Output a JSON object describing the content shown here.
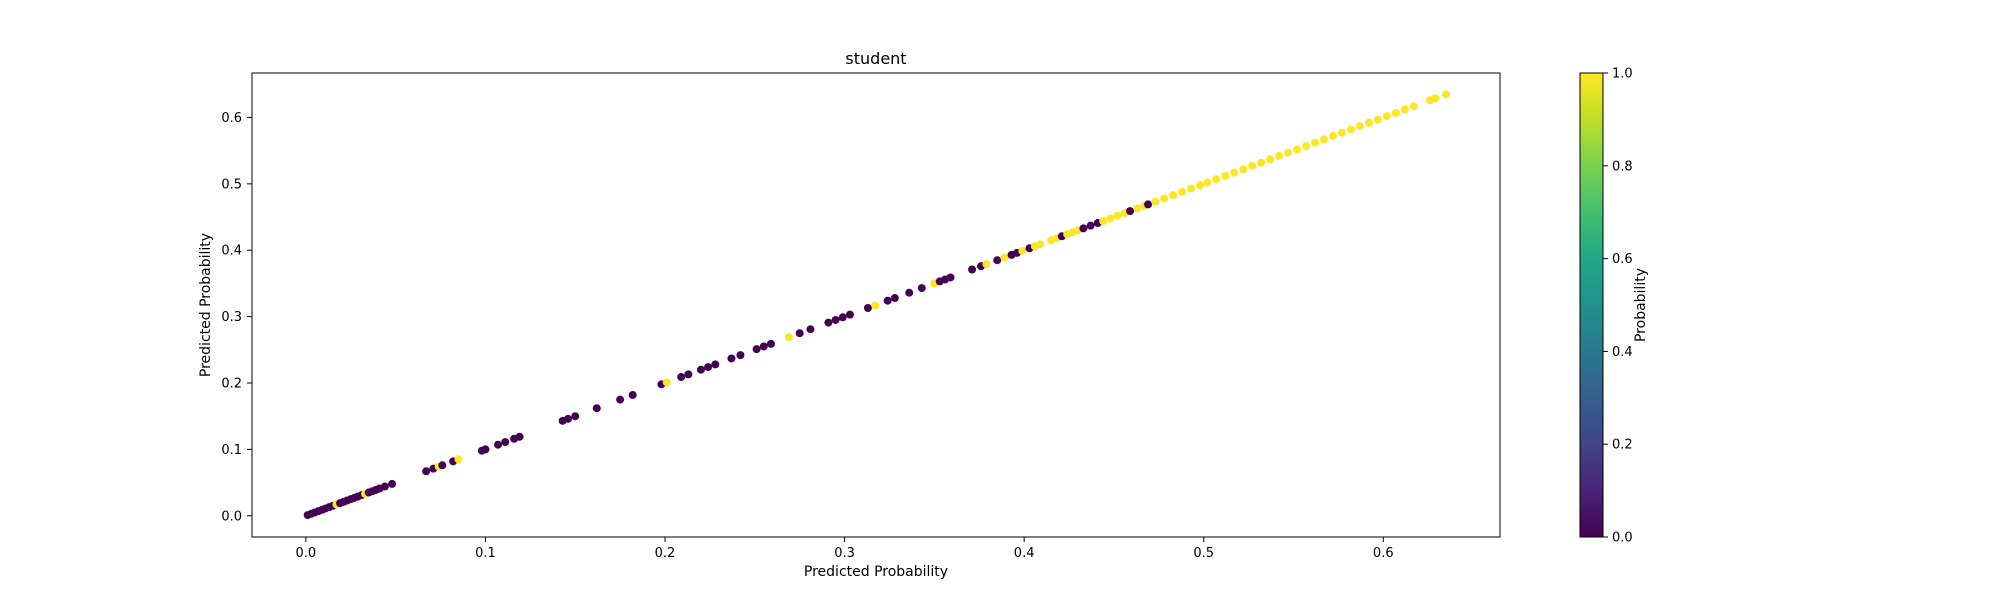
{
  "chart_data": {
    "type": "scatter",
    "title": "student",
    "xlabel": "Predicted Probability",
    "ylabel": "Predicted Probability",
    "xlim": [
      -0.03,
      0.665
    ],
    "ylim": [
      -0.032,
      0.667
    ],
    "xticks": [
      {
        "value": 0.0,
        "label": "0.0"
      },
      {
        "value": 0.1,
        "label": "0.1"
      },
      {
        "value": 0.2,
        "label": "0.2"
      },
      {
        "value": 0.3,
        "label": "0.3"
      },
      {
        "value": 0.4,
        "label": "0.4"
      },
      {
        "value": 0.5,
        "label": "0.5"
      },
      {
        "value": 0.6,
        "label": "0.6"
      }
    ],
    "yticks": [
      {
        "value": 0.0,
        "label": "0.0"
      },
      {
        "value": 0.1,
        "label": "0.1"
      },
      {
        "value": 0.2,
        "label": "0.2"
      },
      {
        "value": 0.3,
        "label": "0.3"
      },
      {
        "value": 0.4,
        "label": "0.4"
      },
      {
        "value": 0.5,
        "label": "0.5"
      },
      {
        "value": 0.6,
        "label": "0.6"
      }
    ],
    "colorbar": {
      "label": "Probability",
      "range": [
        0.0,
        1.0
      ],
      "colormap": "viridis",
      "ticks": [
        {
          "value": 0.0,
          "label": "0.0"
        },
        {
          "value": 0.2,
          "label": "0.2"
        },
        {
          "value": 0.4,
          "label": "0.4"
        },
        {
          "value": 0.6,
          "label": "0.6"
        },
        {
          "value": 0.8,
          "label": "0.8"
        },
        {
          "value": 1.0,
          "label": "1.0"
        }
      ]
    },
    "colors": {
      "class_0": "#440154",
      "class_1": "#fde725"
    },
    "points": [
      {
        "x": 0.001,
        "y": 0.001,
        "c": 0
      },
      {
        "x": 0.003,
        "y": 0.003,
        "c": 0
      },
      {
        "x": 0.005,
        "y": 0.005,
        "c": 0
      },
      {
        "x": 0.007,
        "y": 0.007,
        "c": 0
      },
      {
        "x": 0.009,
        "y": 0.009,
        "c": 0
      },
      {
        "x": 0.011,
        "y": 0.011,
        "c": 0
      },
      {
        "x": 0.013,
        "y": 0.013,
        "c": 0
      },
      {
        "x": 0.015,
        "y": 0.015,
        "c": 0
      },
      {
        "x": 0.017,
        "y": 0.017,
        "c": 1
      },
      {
        "x": 0.019,
        "y": 0.019,
        "c": 0
      },
      {
        "x": 0.021,
        "y": 0.021,
        "c": 0
      },
      {
        "x": 0.023,
        "y": 0.023,
        "c": 0
      },
      {
        "x": 0.025,
        "y": 0.025,
        "c": 0
      },
      {
        "x": 0.027,
        "y": 0.027,
        "c": 0
      },
      {
        "x": 0.029,
        "y": 0.029,
        "c": 0
      },
      {
        "x": 0.031,
        "y": 0.031,
        "c": 0
      },
      {
        "x": 0.033,
        "y": 0.033,
        "c": 1
      },
      {
        "x": 0.035,
        "y": 0.035,
        "c": 0
      },
      {
        "x": 0.037,
        "y": 0.037,
        "c": 0
      },
      {
        "x": 0.039,
        "y": 0.039,
        "c": 0
      },
      {
        "x": 0.041,
        "y": 0.041,
        "c": 0
      },
      {
        "x": 0.044,
        "y": 0.044,
        "c": 0
      },
      {
        "x": 0.048,
        "y": 0.048,
        "c": 0
      },
      {
        "x": 0.067,
        "y": 0.067,
        "c": 0
      },
      {
        "x": 0.071,
        "y": 0.071,
        "c": 0
      },
      {
        "x": 0.074,
        "y": 0.074,
        "c": 1
      },
      {
        "x": 0.076,
        "y": 0.076,
        "c": 0
      },
      {
        "x": 0.082,
        "y": 0.082,
        "c": 0
      },
      {
        "x": 0.085,
        "y": 0.085,
        "c": 1
      },
      {
        "x": 0.098,
        "y": 0.098,
        "c": 0
      },
      {
        "x": 0.1,
        "y": 0.1,
        "c": 0
      },
      {
        "x": 0.107,
        "y": 0.107,
        "c": 0
      },
      {
        "x": 0.111,
        "y": 0.111,
        "c": 0
      },
      {
        "x": 0.116,
        "y": 0.116,
        "c": 0
      },
      {
        "x": 0.119,
        "y": 0.119,
        "c": 0
      },
      {
        "x": 0.143,
        "y": 0.143,
        "c": 0
      },
      {
        "x": 0.146,
        "y": 0.146,
        "c": 0
      },
      {
        "x": 0.15,
        "y": 0.15,
        "c": 0
      },
      {
        "x": 0.162,
        "y": 0.162,
        "c": 0
      },
      {
        "x": 0.175,
        "y": 0.175,
        "c": 0
      },
      {
        "x": 0.182,
        "y": 0.182,
        "c": 0
      },
      {
        "x": 0.198,
        "y": 0.198,
        "c": 0
      },
      {
        "x": 0.201,
        "y": 0.201,
        "c": 1
      },
      {
        "x": 0.209,
        "y": 0.209,
        "c": 0
      },
      {
        "x": 0.213,
        "y": 0.213,
        "c": 0
      },
      {
        "x": 0.22,
        "y": 0.22,
        "c": 0
      },
      {
        "x": 0.224,
        "y": 0.224,
        "c": 0
      },
      {
        "x": 0.228,
        "y": 0.228,
        "c": 0
      },
      {
        "x": 0.237,
        "y": 0.237,
        "c": 0
      },
      {
        "x": 0.242,
        "y": 0.242,
        "c": 0
      },
      {
        "x": 0.251,
        "y": 0.251,
        "c": 0
      },
      {
        "x": 0.255,
        "y": 0.255,
        "c": 0
      },
      {
        "x": 0.259,
        "y": 0.259,
        "c": 0
      },
      {
        "x": 0.269,
        "y": 0.269,
        "c": 1
      },
      {
        "x": 0.275,
        "y": 0.275,
        "c": 0
      },
      {
        "x": 0.281,
        "y": 0.281,
        "c": 0
      },
      {
        "x": 0.291,
        "y": 0.291,
        "c": 0
      },
      {
        "x": 0.295,
        "y": 0.295,
        "c": 0
      },
      {
        "x": 0.299,
        "y": 0.299,
        "c": 0
      },
      {
        "x": 0.303,
        "y": 0.303,
        "c": 0
      },
      {
        "x": 0.313,
        "y": 0.313,
        "c": 0
      },
      {
        "x": 0.317,
        "y": 0.317,
        "c": 1
      },
      {
        "x": 0.324,
        "y": 0.324,
        "c": 0
      },
      {
        "x": 0.328,
        "y": 0.328,
        "c": 0
      },
      {
        "x": 0.336,
        "y": 0.336,
        "c": 0
      },
      {
        "x": 0.343,
        "y": 0.343,
        "c": 0
      },
      {
        "x": 0.35,
        "y": 0.35,
        "c": 1
      },
      {
        "x": 0.353,
        "y": 0.353,
        "c": 0
      },
      {
        "x": 0.356,
        "y": 0.356,
        "c": 0
      },
      {
        "x": 0.359,
        "y": 0.359,
        "c": 0
      },
      {
        "x": 0.371,
        "y": 0.371,
        "c": 0
      },
      {
        "x": 0.376,
        "y": 0.376,
        "c": 0
      },
      {
        "x": 0.379,
        "y": 0.379,
        "c": 1
      },
      {
        "x": 0.385,
        "y": 0.385,
        "c": 0
      },
      {
        "x": 0.389,
        "y": 0.389,
        "c": 1
      },
      {
        "x": 0.393,
        "y": 0.393,
        "c": 0
      },
      {
        "x": 0.396,
        "y": 0.396,
        "c": 0
      },
      {
        "x": 0.399,
        "y": 0.399,
        "c": 1
      },
      {
        "x": 0.403,
        "y": 0.403,
        "c": 0
      },
      {
        "x": 0.406,
        "y": 0.406,
        "c": 1
      },
      {
        "x": 0.409,
        "y": 0.409,
        "c": 1
      },
      {
        "x": 0.415,
        "y": 0.415,
        "c": 1
      },
      {
        "x": 0.418,
        "y": 0.418,
        "c": 1
      },
      {
        "x": 0.421,
        "y": 0.421,
        "c": 0
      },
      {
        "x": 0.424,
        "y": 0.424,
        "c": 1
      },
      {
        "x": 0.427,
        "y": 0.427,
        "c": 1
      },
      {
        "x": 0.43,
        "y": 0.43,
        "c": 1
      },
      {
        "x": 0.433,
        "y": 0.433,
        "c": 0
      },
      {
        "x": 0.437,
        "y": 0.437,
        "c": 0
      },
      {
        "x": 0.441,
        "y": 0.441,
        "c": 0
      },
      {
        "x": 0.444,
        "y": 0.444,
        "c": 1
      },
      {
        "x": 0.448,
        "y": 0.448,
        "c": 1
      },
      {
        "x": 0.452,
        "y": 0.452,
        "c": 1
      },
      {
        "x": 0.456,
        "y": 0.456,
        "c": 1
      },
      {
        "x": 0.459,
        "y": 0.459,
        "c": 0
      },
      {
        "x": 0.463,
        "y": 0.463,
        "c": 1
      },
      {
        "x": 0.467,
        "y": 0.467,
        "c": 1
      },
      {
        "x": 0.469,
        "y": 0.469,
        "c": 0
      },
      {
        "x": 0.473,
        "y": 0.473,
        "c": 1
      },
      {
        "x": 0.478,
        "y": 0.478,
        "c": 1
      },
      {
        "x": 0.483,
        "y": 0.483,
        "c": 1
      },
      {
        "x": 0.488,
        "y": 0.488,
        "c": 1
      },
      {
        "x": 0.493,
        "y": 0.493,
        "c": 1
      },
      {
        "x": 0.498,
        "y": 0.498,
        "c": 1
      },
      {
        "x": 0.502,
        "y": 0.502,
        "c": 1
      },
      {
        "x": 0.507,
        "y": 0.507,
        "c": 1
      },
      {
        "x": 0.512,
        "y": 0.512,
        "c": 1
      },
      {
        "x": 0.517,
        "y": 0.517,
        "c": 1
      },
      {
        "x": 0.522,
        "y": 0.522,
        "c": 1
      },
      {
        "x": 0.527,
        "y": 0.527,
        "c": 1
      },
      {
        "x": 0.532,
        "y": 0.532,
        "c": 1
      },
      {
        "x": 0.537,
        "y": 0.537,
        "c": 1
      },
      {
        "x": 0.542,
        "y": 0.542,
        "c": 1
      },
      {
        "x": 0.547,
        "y": 0.547,
        "c": 1
      },
      {
        "x": 0.552,
        "y": 0.552,
        "c": 1
      },
      {
        "x": 0.557,
        "y": 0.557,
        "c": 1
      },
      {
        "x": 0.562,
        "y": 0.562,
        "c": 1
      },
      {
        "x": 0.567,
        "y": 0.567,
        "c": 1
      },
      {
        "x": 0.572,
        "y": 0.572,
        "c": 1
      },
      {
        "x": 0.577,
        "y": 0.577,
        "c": 1
      },
      {
        "x": 0.582,
        "y": 0.582,
        "c": 1
      },
      {
        "x": 0.587,
        "y": 0.587,
        "c": 1
      },
      {
        "x": 0.592,
        "y": 0.592,
        "c": 1
      },
      {
        "x": 0.597,
        "y": 0.597,
        "c": 1
      },
      {
        "x": 0.602,
        "y": 0.602,
        "c": 1
      },
      {
        "x": 0.607,
        "y": 0.607,
        "c": 1
      },
      {
        "x": 0.612,
        "y": 0.612,
        "c": 1
      },
      {
        "x": 0.617,
        "y": 0.617,
        "c": 1
      },
      {
        "x": 0.626,
        "y": 0.626,
        "c": 1
      },
      {
        "x": 0.629,
        "y": 0.629,
        "c": 1
      },
      {
        "x": 0.635,
        "y": 0.635,
        "c": 1
      }
    ]
  }
}
